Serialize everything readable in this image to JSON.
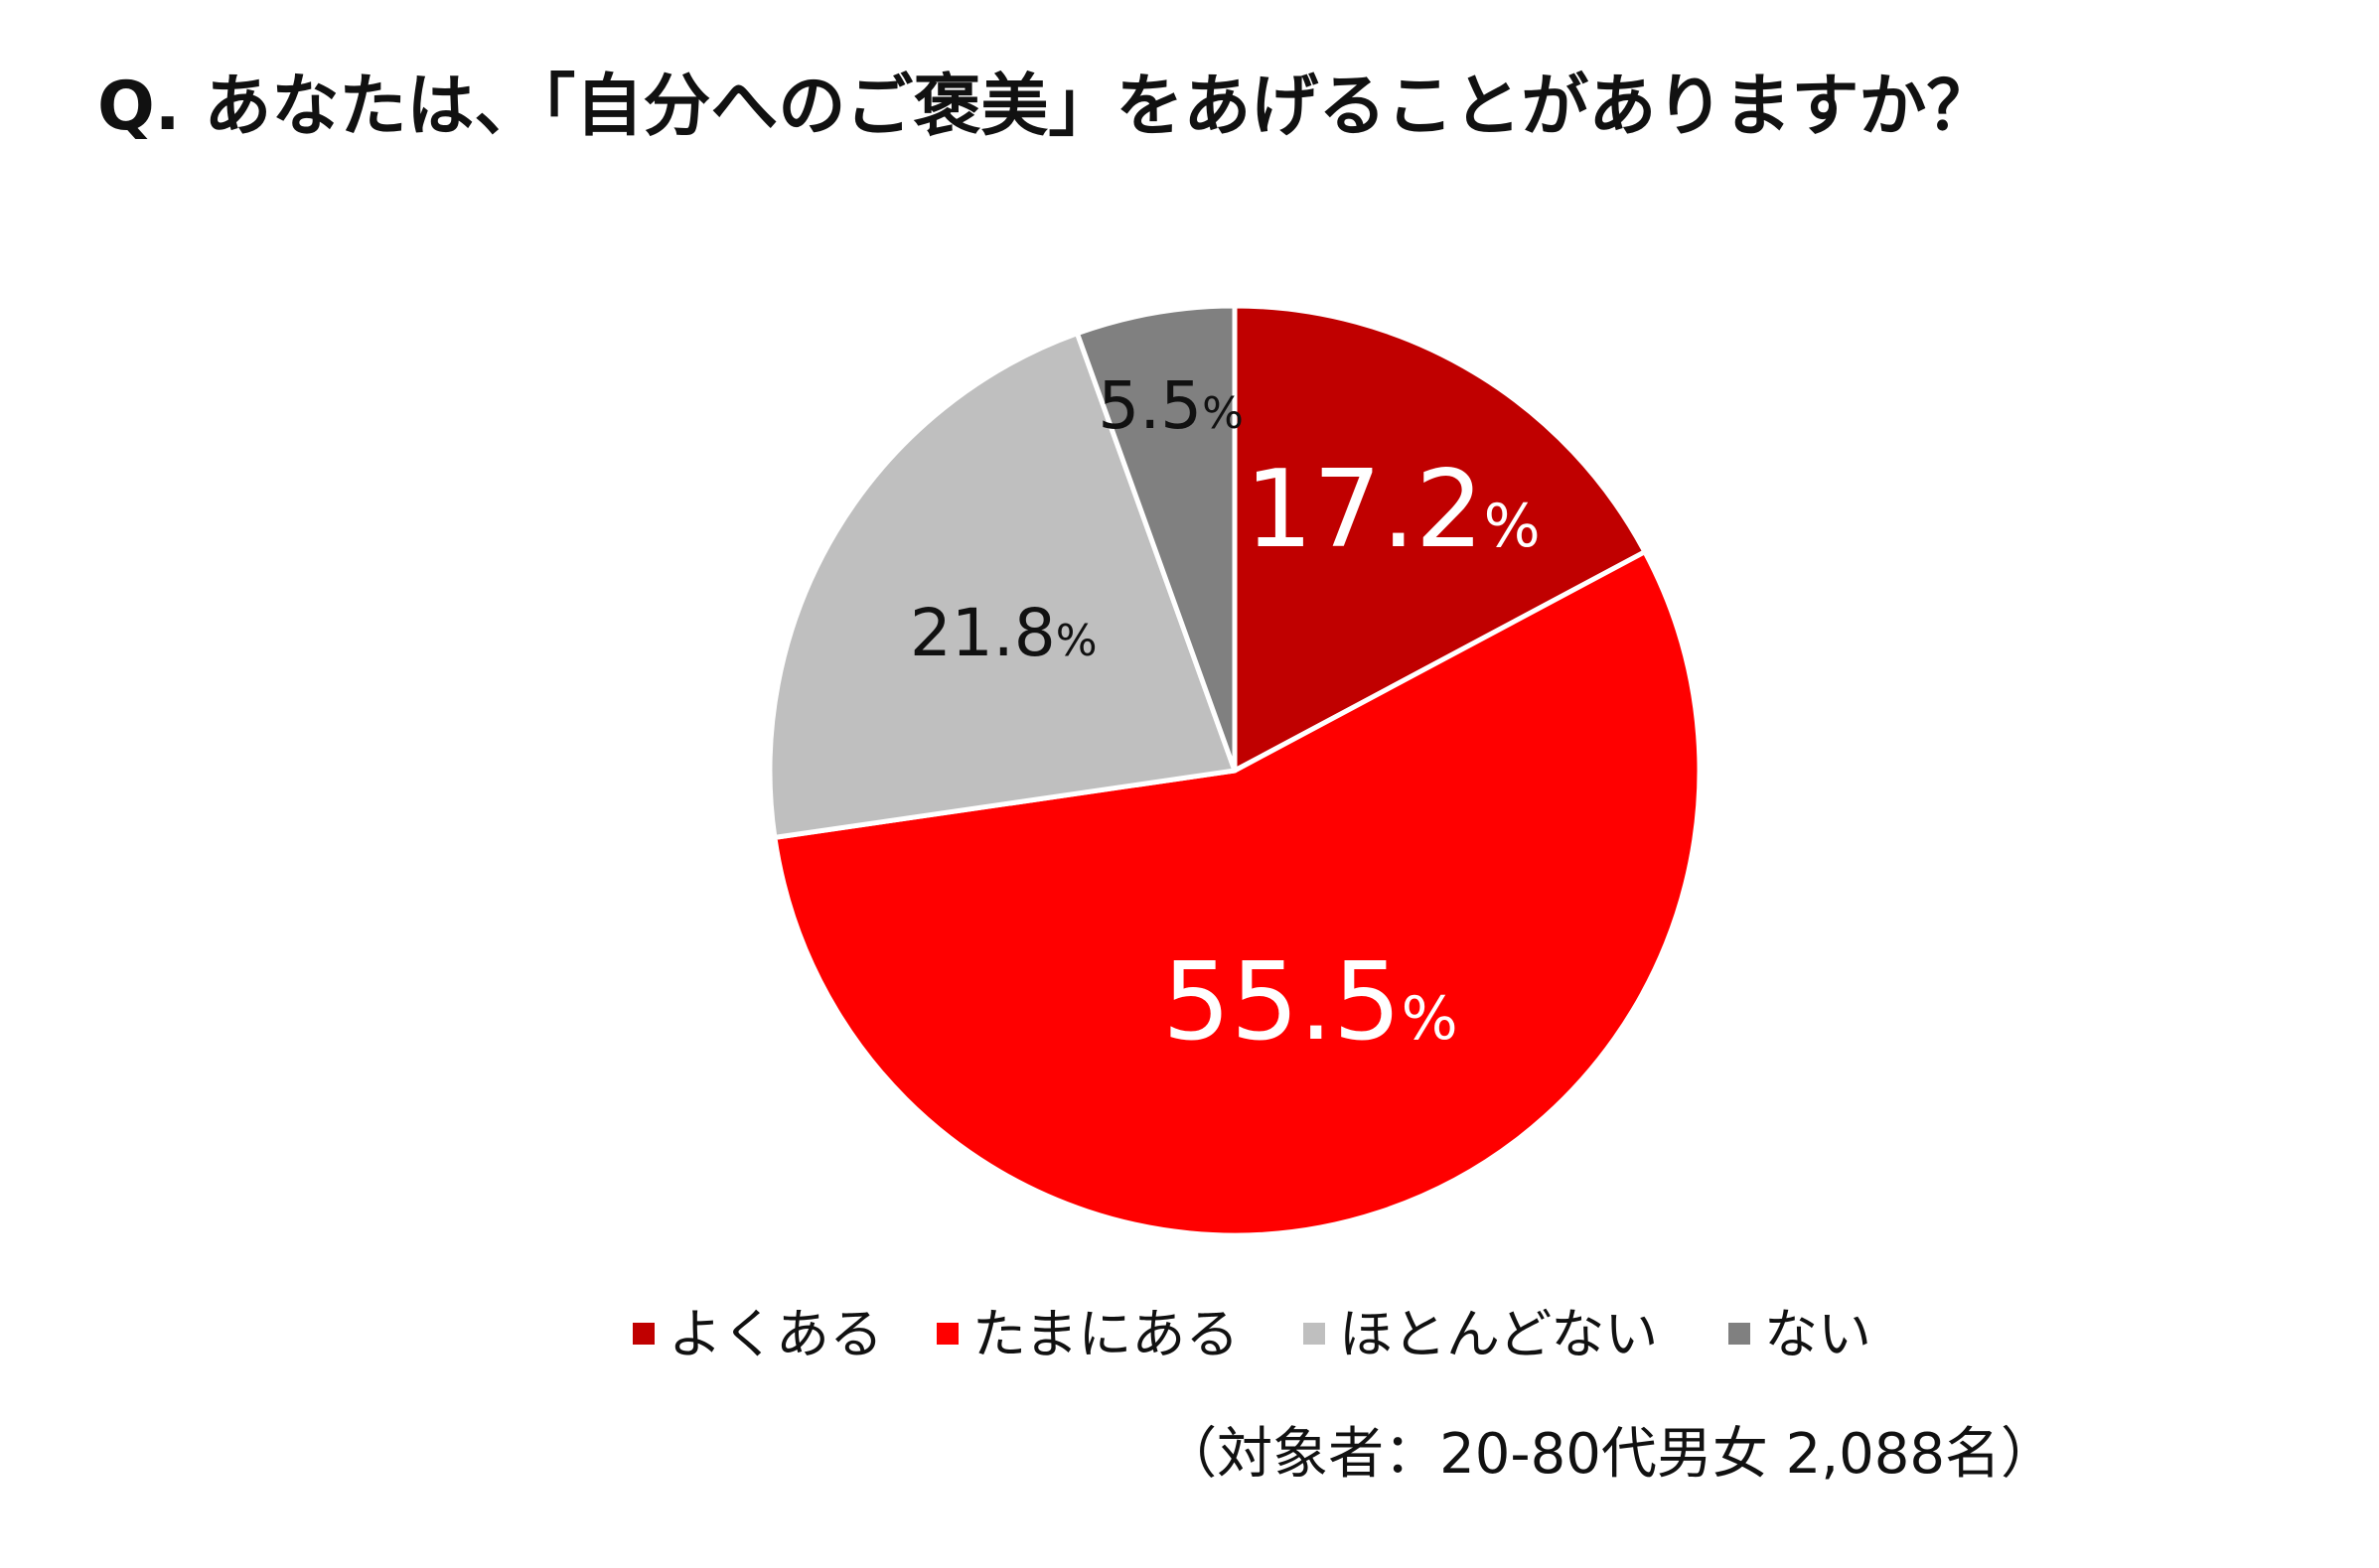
{
  "chart_data": {
    "type": "pie",
    "title": "Q. あなたは、「自分へのご褒美」をあげることがありますか？",
    "categories": [
      "よくある",
      "たまにある",
      "ほとんどない",
      "ない"
    ],
    "values": [
      17.2,
      55.5,
      21.8,
      5.5
    ],
    "unit": "%",
    "colors": [
      "#c00000",
      "#ff0000",
      "#bfbfbf",
      "#808080"
    ],
    "label_colors": [
      "#ffffff",
      "#ffffff",
      "#111111",
      "#111111"
    ],
    "start_angle_deg": 0,
    "direction": "clockwise",
    "legend": {
      "position": "bottom"
    },
    "note": "（対象者：20-80代男女 2,088名）"
  }
}
